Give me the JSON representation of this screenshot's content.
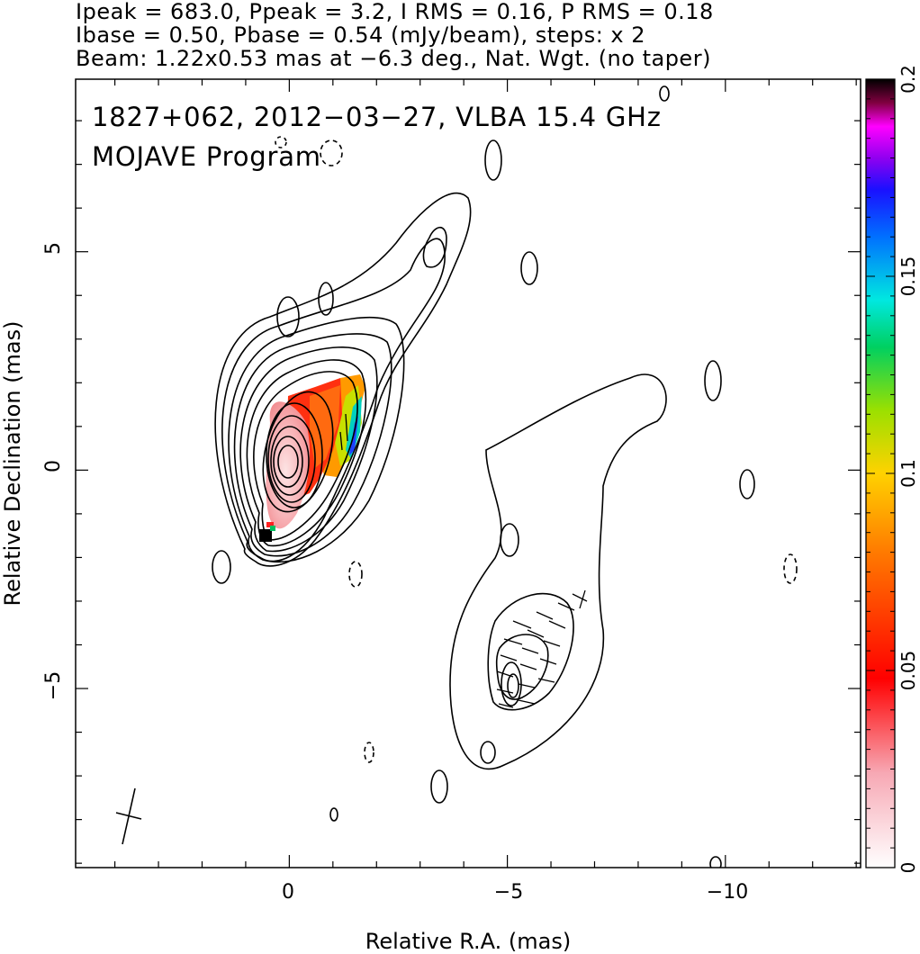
{
  "header": {
    "line1": "Ipeak = 683.0, Ppeak = 3.2, I RMS = 0.16, P RMS = 0.18",
    "line2": "Ibase = 0.50, Pbase = 0.54 (mJy/beam), steps: x 2",
    "line3": "Beam: 1.22x0.53 mas at −6.3 deg., Nat. Wgt. (no taper)"
  },
  "chart_data": {
    "type": "heatmap",
    "title": "1827+062, 2012−03−27, VLBA 15.4 GHz",
    "subtitle": "MOJAVE Program",
    "xlabel": "Relative R.A. (mas)",
    "ylabel": "Relative Declination (mas)",
    "xlim": [
      4.9,
      -13.1
    ],
    "ylim": [
      -9.1,
      8.95
    ],
    "x_ticks": [
      0,
      -5,
      -10
    ],
    "x_tick_labels": [
      "0",
      "−5",
      "−10"
    ],
    "y_ticks": [
      5,
      0,
      -5
    ],
    "y_tick_labels": [
      "5",
      "0",
      "−5"
    ],
    "colorbar": {
      "range": [
        0,
        0.2
      ],
      "ticks": [
        0,
        0.05,
        0.1,
        0.15,
        0.2
      ],
      "tick_labels": [
        "0",
        "0.05",
        "0.1",
        "0.15",
        "0.2"
      ]
    },
    "contour_base_mJy_per_beam": 0.5,
    "contour_step": 2,
    "peak_intensity_mJy_per_beam": 683.0,
    "core_position": [
      0,
      0
    ],
    "jet_components": [
      {
        "x": -5.0,
        "y": -5.0
      }
    ],
    "beam": {
      "major_mas": 1.22,
      "minor_mas": 0.53,
      "pa_deg": -6.3
    }
  }
}
